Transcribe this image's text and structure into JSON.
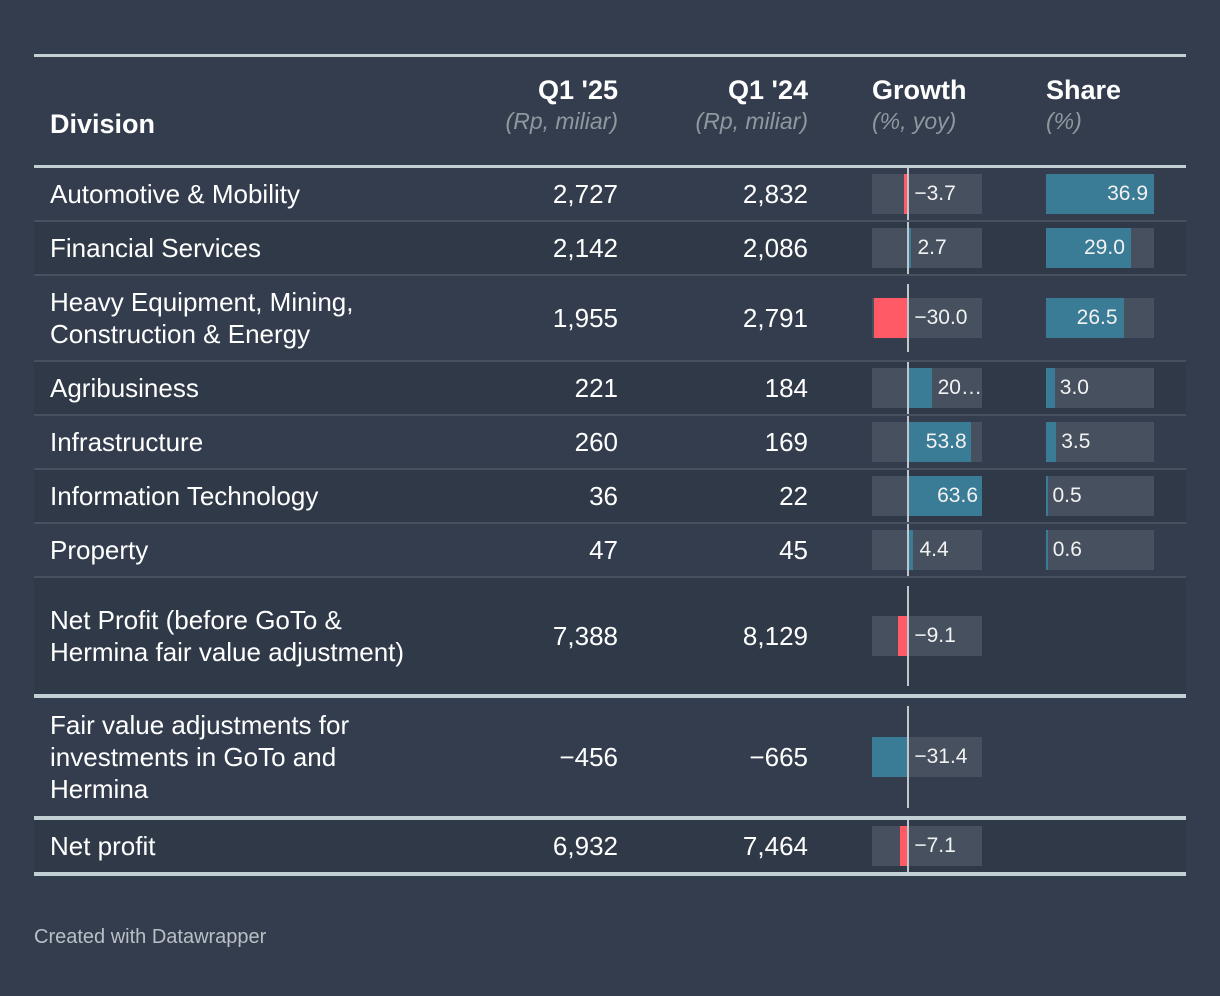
{
  "colors": {
    "positive": "#3a7b96",
    "negative": "#ff5a65",
    "track": "#46505e",
    "share": "#3a7b96"
  },
  "header": {
    "division": "Division",
    "q1_25": "Q1 '25",
    "q1_25_sub": "(Rp, miliar)",
    "q1_24": "Q1 '24",
    "q1_24_sub": "(Rp, miliar)",
    "growth": "Growth",
    "growth_sub": "(%, yoy)",
    "share": "Share",
    "share_sub": "(%)"
  },
  "chart_data": {
    "type": "table",
    "title": "",
    "columns": [
      "Division",
      "Q1 '25 (Rp, miliar)",
      "Q1 '24 (Rp, miliar)",
      "Growth (%, yoy)",
      "Share (%)"
    ],
    "growth_range": [
      -31.4,
      63.6
    ],
    "share_range": [
      0,
      36.9
    ],
    "rows": [
      {
        "division": "Automotive & Mobility",
        "q1_25": "2,727",
        "q1_24": "2,832",
        "growth": -3.7,
        "growth_label": "−3.7",
        "share": 36.9,
        "share_label": "36.9"
      },
      {
        "division": "Financial Services",
        "q1_25": "2,142",
        "q1_24": "2,086",
        "growth": 2.7,
        "growth_label": "2.7",
        "share": 29.0,
        "share_label": "29.0"
      },
      {
        "division": "Heavy Equipment, Mining, Construction & Energy",
        "q1_25": "1,955",
        "q1_24": "2,791",
        "growth": -30.0,
        "growth_label": "−30.0",
        "share": 26.5,
        "share_label": "26.5"
      },
      {
        "division": "Agribusiness",
        "q1_25": "221",
        "q1_24": "184",
        "growth": 20.1,
        "growth_label": "20…",
        "share": 3.0,
        "share_label": "3.0"
      },
      {
        "division": "Infrastructure",
        "q1_25": "260",
        "q1_24": "169",
        "growth": 53.8,
        "growth_label": "53.8",
        "share": 3.5,
        "share_label": "3.5"
      },
      {
        "division": "Information Technology",
        "q1_25": "36",
        "q1_24": "22",
        "growth": 63.6,
        "growth_label": "63.6",
        "share": 0.5,
        "share_label": "0.5"
      },
      {
        "division": "Property",
        "q1_25": "47",
        "q1_24": "45",
        "growth": 4.4,
        "growth_label": "4.4",
        "share": 0.6,
        "share_label": "0.6"
      },
      {
        "division": "Net Profit (before GoTo & Hermina fair value adjustment)",
        "q1_25": "7,388",
        "q1_24": "8,129",
        "growth": -9.1,
        "growth_label": "−9.1",
        "share": null,
        "share_label": ""
      },
      {
        "division": "Fair value adjustments for investments in GoTo and Hermina",
        "q1_25": "−456",
        "q1_24": "−665",
        "growth": -31.4,
        "growth_label": "−31.4",
        "growth_color": "positive",
        "share": null,
        "share_label": ""
      },
      {
        "division": "Net profit",
        "q1_25": "6,932",
        "q1_24": "7,464",
        "growth": -7.1,
        "growth_label": "−7.1",
        "share": null,
        "share_label": ""
      }
    ]
  },
  "footer": {
    "credit": "Created with Datawrapper"
  }
}
